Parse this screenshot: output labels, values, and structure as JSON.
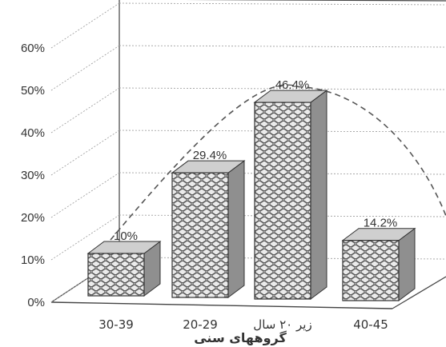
{
  "chart_data": {
    "type": "bar",
    "categories": [
      "30-39",
      "20-29",
      "زیر ۲۰ سال",
      "40-45"
    ],
    "values": [
      10,
      29.4,
      46.4,
      14.2
    ],
    "data_labels": [
      "10%",
      "29.4%",
      "46.4%",
      "14.2%"
    ],
    "y_ticks": [
      "0%",
      "10%",
      "20%",
      "30%",
      "40%",
      "50%",
      "60%"
    ],
    "ylim": [
      0,
      60
    ],
    "xlabel": "گروههای سنی",
    "title": "",
    "ylabel": "",
    "grid": true,
    "style": "3d",
    "trend_curve": "dashed",
    "colors": {
      "bar_front": "#e2e2e2",
      "bar_top": "#cfcfcf",
      "bar_side": "#8f8f8f",
      "axis": "#444444",
      "grid": "#999999",
      "trend": "#555555"
    }
  }
}
